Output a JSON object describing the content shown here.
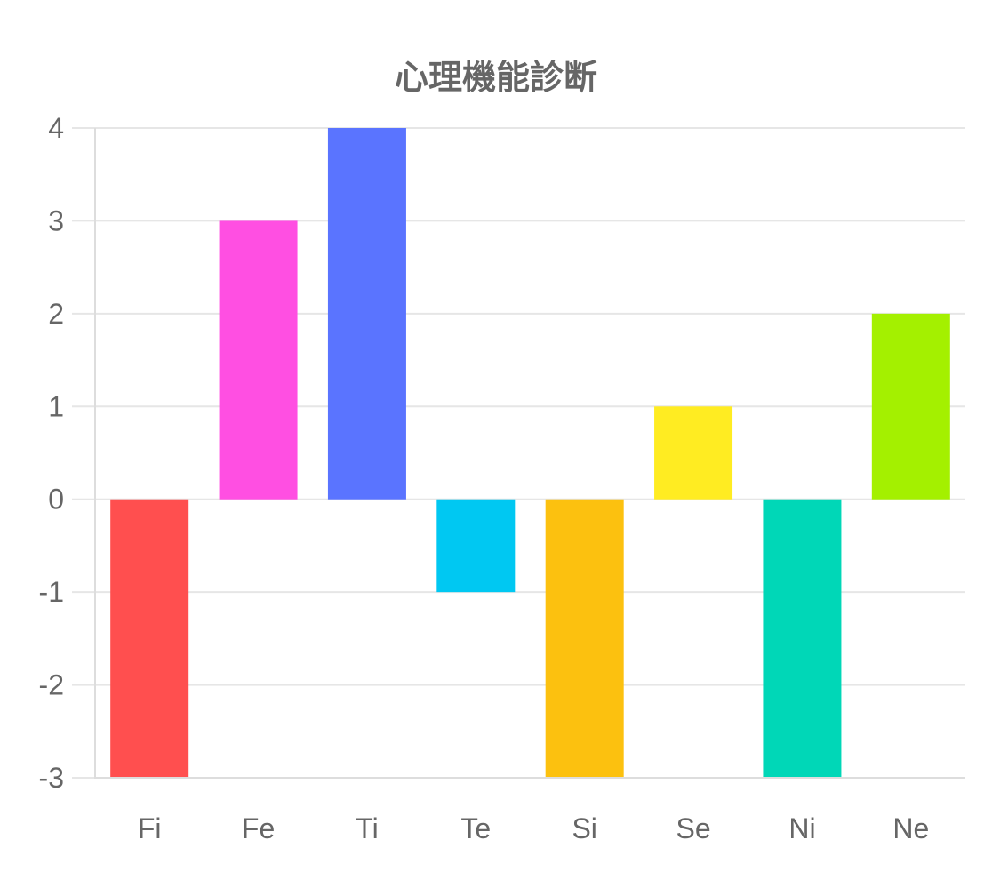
{
  "chart_data": {
    "type": "bar",
    "title": "心理機能診断",
    "xlabel": "",
    "ylabel": "",
    "categories": [
      "Fi",
      "Fe",
      "Ti",
      "Te",
      "Si",
      "Se",
      "Ni",
      "Ne"
    ],
    "values": [
      -3,
      3,
      4,
      -1,
      -3,
      1,
      -3,
      2
    ],
    "colors": [
      "#ff4f4f",
      "#ff4fe2",
      "#5a74ff",
      "#00c8f2",
      "#fcc10f",
      "#ffec22",
      "#00d7b7",
      "#a4f000"
    ],
    "ylim": [
      -3,
      4
    ],
    "yticks": [
      "4",
      "3",
      "2",
      "1",
      "0",
      "-1",
      "-2",
      "-3"
    ],
    "grid": true,
    "legend": "none"
  }
}
